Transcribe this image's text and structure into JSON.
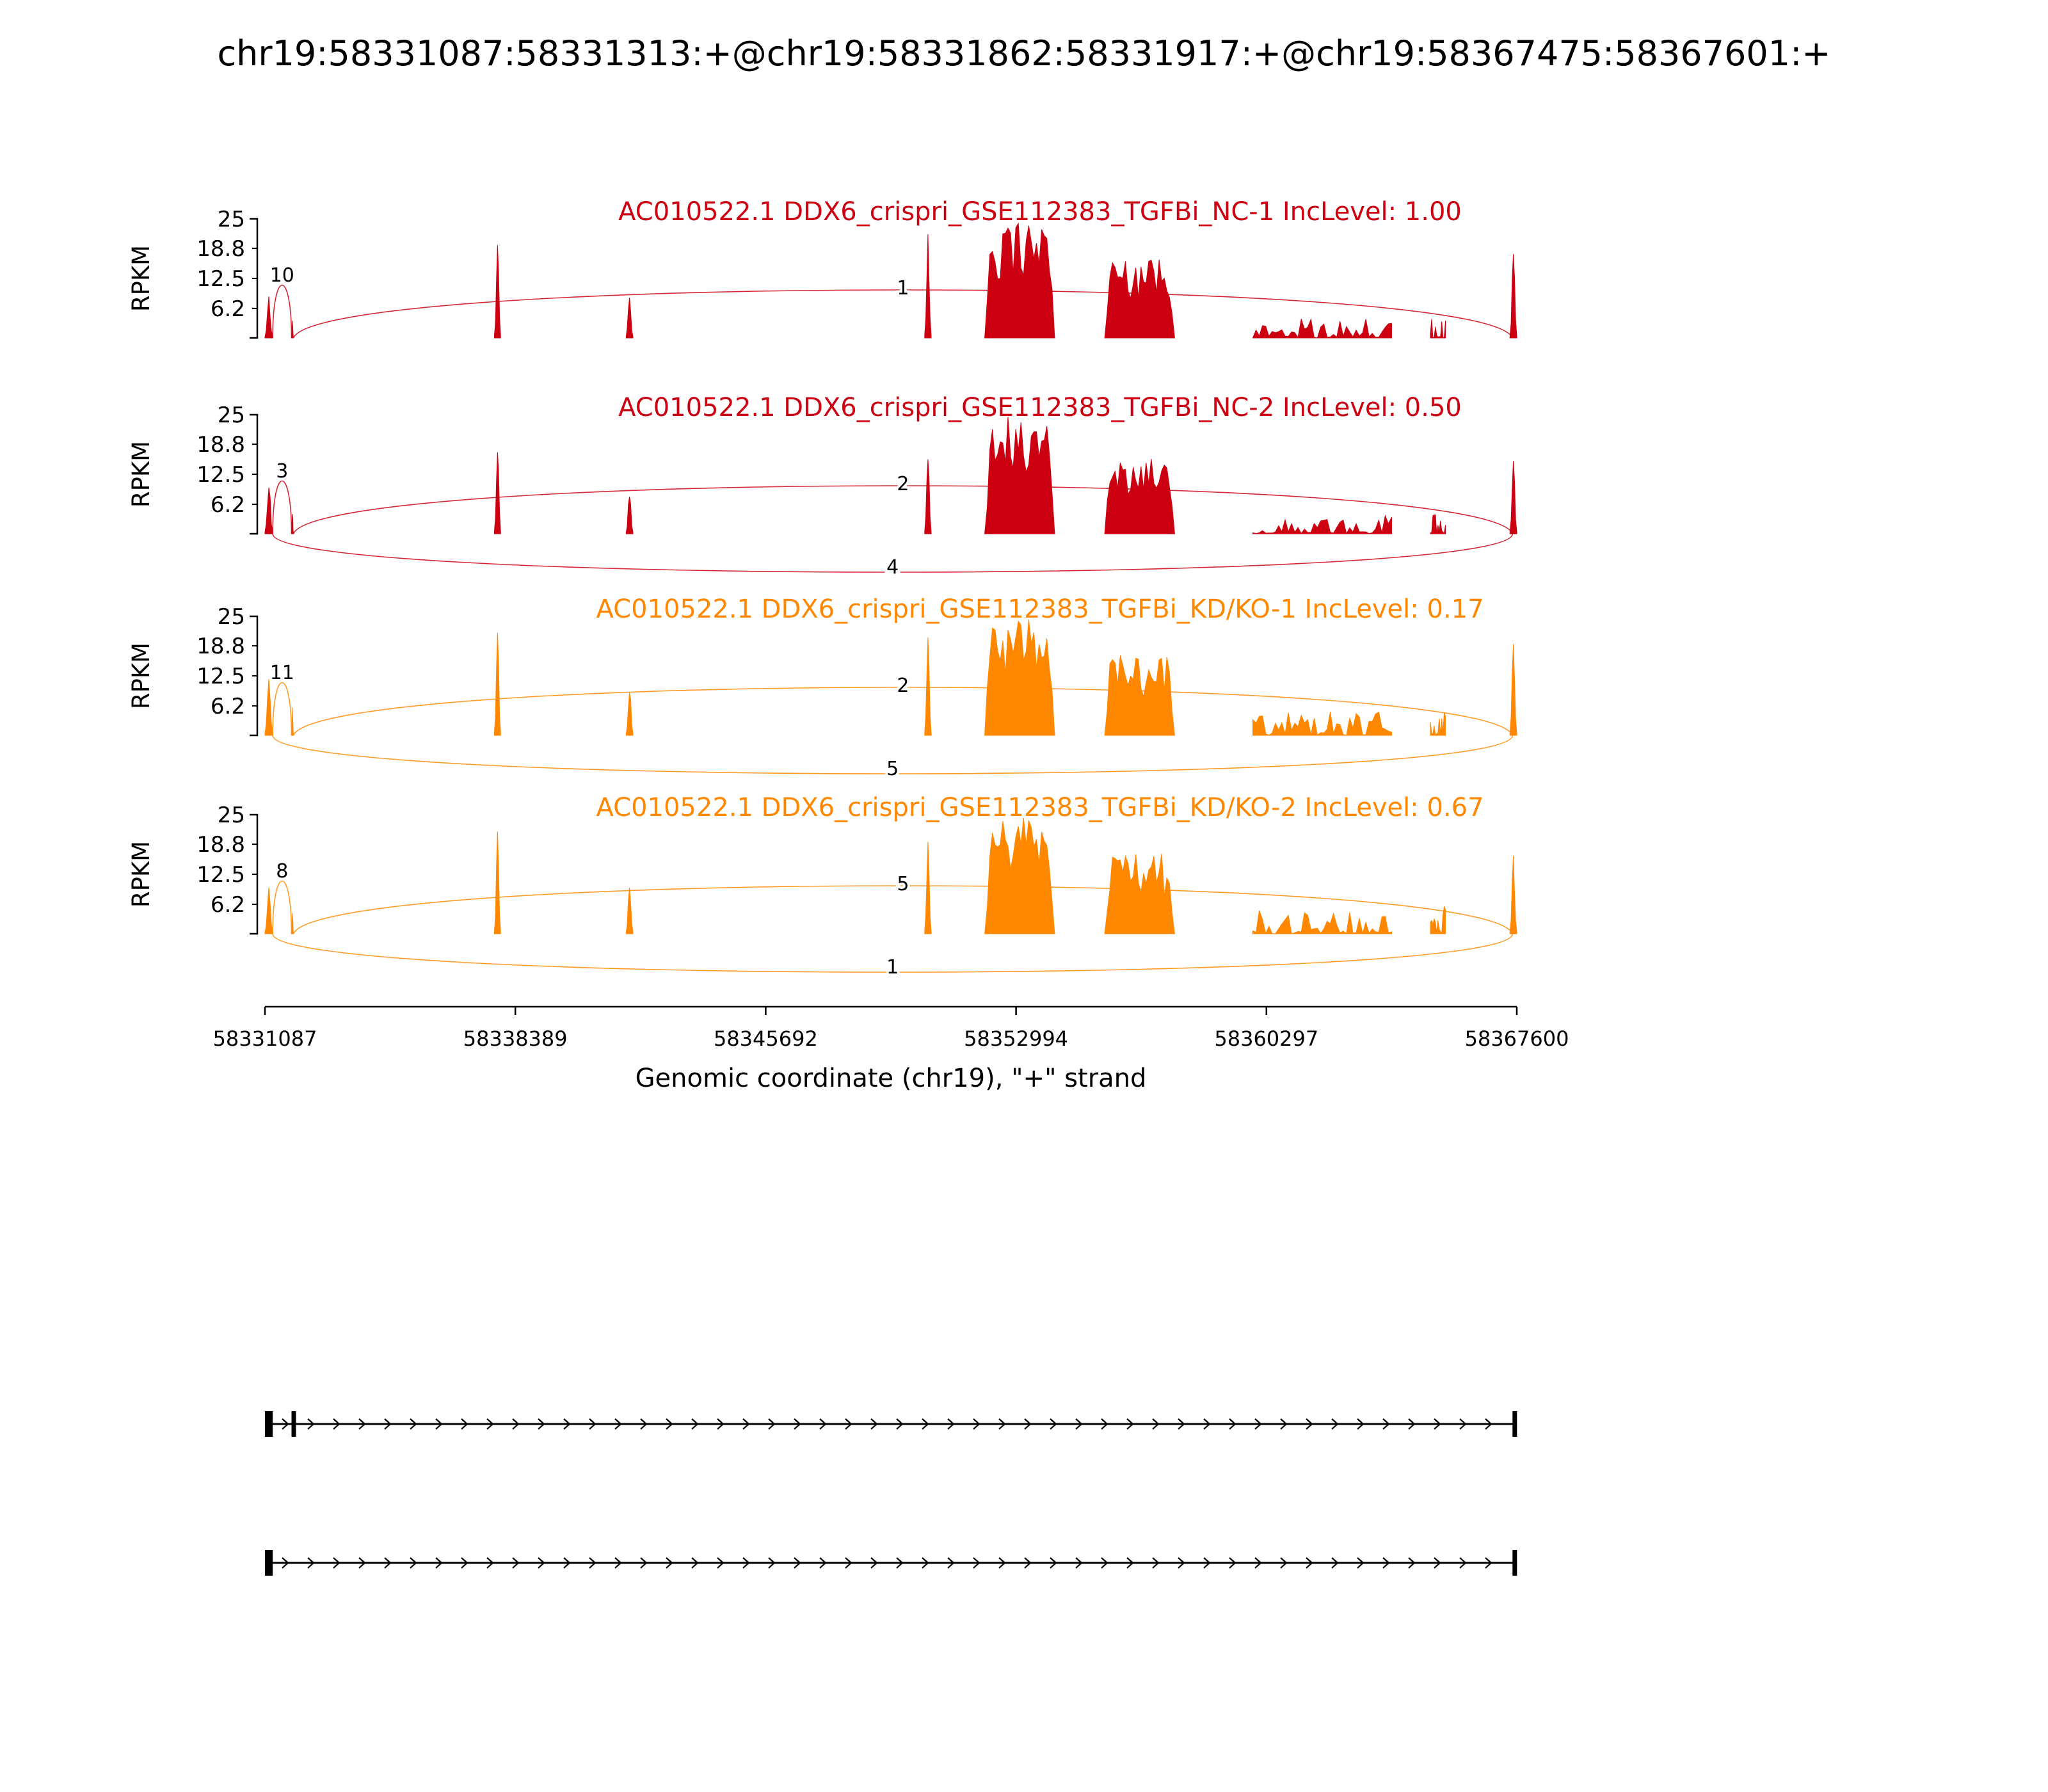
{
  "figure": {
    "title": "chr19:58331087:58331313:+@chr19:58331862:58331917:+@chr19:58367475:58367601:+",
    "background": "#ffffff"
  },
  "axis": {
    "xlabel": "Genomic coordinate (chr19), \"+\" strand",
    "ylabel": "RPKM",
    "yticks": [
      "25",
      "18.8",
      "12.5",
      "6.2"
    ],
    "xticks": [
      "58331087",
      "58338389",
      "58345692",
      "58352994",
      "58360297",
      "58367600"
    ]
  },
  "chart_data": {
    "type": "sashimi",
    "event": "chr19:58331087:58331313:+@chr19:58331862:58331917:+@chr19:58367475:58367601:+",
    "x_min": 58331087,
    "x_max": 58367600,
    "x_ticks": [
      58331087,
      58338389,
      58345692,
      58352994,
      58360297,
      58367600
    ],
    "xlabel": "Genomic coordinate (chr19), \"+\" strand",
    "ylabel": "RPKM",
    "y_ticks": [
      25,
      18.8,
      12.5,
      6.2
    ],
    "tracks": [
      {
        "label": "AC010522.1 DDX6_crispri_GSE112383_TGFBi_NC-1 IncLevel: 1.00",
        "sample": "DDX6_crispri_GSE112383_TGFBi_NC-1",
        "inc_level": 1.0,
        "color": "#CC0011",
        "junctions": [
          {
            "from": 58331313,
            "to": 58331862,
            "count": 10,
            "arc": "small"
          },
          {
            "from": 58331917,
            "to": 58367475,
            "count": 1,
            "arc": "up"
          }
        ],
        "coverage": [
          [
            58331087,
            58331313,
            9,
            "spike"
          ],
          [
            58331862,
            58331917,
            4,
            "spike"
          ],
          [
            58337780,
            58337960,
            24,
            "spike"
          ],
          [
            58341620,
            58341820,
            11,
            "spike"
          ],
          [
            58350330,
            58350520,
            22,
            "spike"
          ],
          [
            58352080,
            58354120,
            25,
            "block"
          ],
          [
            58355580,
            58357620,
            17,
            "block"
          ],
          [
            58359900,
            58363950,
            4,
            "noise"
          ],
          [
            58365080,
            58365520,
            5,
            "noise"
          ],
          [
            58367400,
            58367600,
            20,
            "spike"
          ]
        ]
      },
      {
        "label": "AC010522.1 DDX6_crispri_GSE112383_TGFBi_NC-2 IncLevel: 0.50",
        "sample": "DDX6_crispri_GSE112383_TGFBi_NC-2",
        "inc_level": 0.5,
        "color": "#CC0011",
        "junctions": [
          {
            "from": 58331313,
            "to": 58331862,
            "count": 3,
            "arc": "small"
          },
          {
            "from": 58331917,
            "to": 58367475,
            "count": 2,
            "arc": "up"
          },
          {
            "from": 58331313,
            "to": 58367475,
            "count": 4,
            "arc": "down"
          }
        ],
        "coverage": [
          [
            58331087,
            58331313,
            12,
            "spike"
          ],
          [
            58331862,
            58331917,
            5,
            "spike"
          ],
          [
            58337780,
            58337960,
            23,
            "spike"
          ],
          [
            58341620,
            58341820,
            10,
            "spike"
          ],
          [
            58350330,
            58350520,
            21,
            "spike"
          ],
          [
            58352080,
            58354120,
            25,
            "block"
          ],
          [
            58355580,
            58357620,
            16,
            "block"
          ],
          [
            58359900,
            58363950,
            4,
            "noise"
          ],
          [
            58365080,
            58365520,
            4,
            "noise"
          ],
          [
            58367400,
            58367600,
            19,
            "spike"
          ]
        ]
      },
      {
        "label": "AC010522.1 DDX6_crispri_GSE112383_TGFBi_KD/KO-1 IncLevel: 0.17",
        "sample": "DDX6_crispri_GSE112383_TGFBi_KD/KO-1",
        "inc_level": 0.17,
        "color": "#FF8800",
        "junctions": [
          {
            "from": 58331313,
            "to": 58331862,
            "count": 11,
            "arc": "small"
          },
          {
            "from": 58331917,
            "to": 58367475,
            "count": 2,
            "arc": "up"
          },
          {
            "from": 58331313,
            "to": 58367475,
            "count": 5,
            "arc": "down"
          }
        ],
        "coverage": [
          [
            58331087,
            58331313,
            14,
            "spike"
          ],
          [
            58331862,
            58331917,
            6,
            "spike"
          ],
          [
            58337780,
            58337960,
            24,
            "spike"
          ],
          [
            58341620,
            58341820,
            12,
            "spike"
          ],
          [
            58350330,
            58350520,
            22,
            "spike"
          ],
          [
            58352080,
            58354120,
            25,
            "block"
          ],
          [
            58355580,
            58357620,
            17,
            "block"
          ],
          [
            58359900,
            58363950,
            5,
            "noise"
          ],
          [
            58365080,
            58365520,
            5,
            "noise"
          ],
          [
            58367400,
            58367600,
            22,
            "spike"
          ]
        ]
      },
      {
        "label": "AC010522.1 DDX6_crispri_GSE112383_TGFBi_KD/KO-2 IncLevel: 0.67",
        "sample": "DDX6_crispri_GSE112383_TGFBi_KD/KO-2",
        "inc_level": 0.67,
        "color": "#FF8800",
        "junctions": [
          {
            "from": 58331313,
            "to": 58331862,
            "count": 8,
            "arc": "small"
          },
          {
            "from": 58331917,
            "to": 58367475,
            "count": 5,
            "arc": "up"
          },
          {
            "from": 58331313,
            "to": 58367475,
            "count": 1,
            "arc": "down"
          }
        ],
        "coverage": [
          [
            58331087,
            58331313,
            10,
            "spike"
          ],
          [
            58331862,
            58331917,
            5,
            "spike"
          ],
          [
            58337780,
            58337960,
            24,
            "spike"
          ],
          [
            58341620,
            58341820,
            12,
            "spike"
          ],
          [
            58350330,
            58350520,
            21,
            "spike"
          ],
          [
            58352080,
            58354120,
            25,
            "block"
          ],
          [
            58355580,
            58357620,
            17,
            "block"
          ],
          [
            58359900,
            58363950,
            5,
            "noise"
          ],
          [
            58365080,
            58365520,
            6,
            "noise"
          ],
          [
            58367400,
            58367600,
            18,
            "spike"
          ]
        ]
      }
    ],
    "transcripts": [
      {
        "strand": "+",
        "exons": [
          [
            58331087,
            58331313
          ],
          [
            58331862,
            58331917
          ],
          [
            58367475,
            58367601
          ]
        ]
      },
      {
        "strand": "+",
        "exons": [
          [
            58331087,
            58331313
          ],
          [
            58367475,
            58367601
          ]
        ]
      }
    ]
  }
}
